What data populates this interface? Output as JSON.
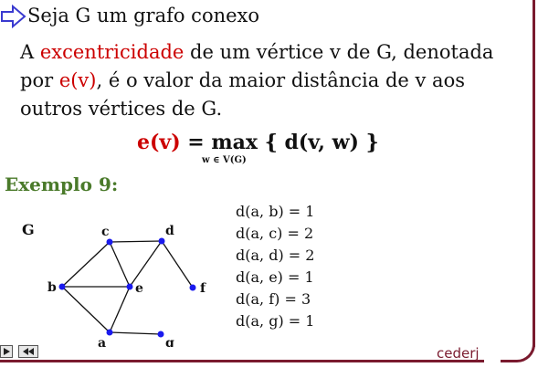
{
  "intro_line": "Seja G um grafo conexo",
  "definition": {
    "before": "A ",
    "term": "excentricidade",
    "middle": " de um vértice v de G, denotada por ",
    "symbol": "e(v)",
    "after": ", é o valor da maior distância de v aos outros vértices de G."
  },
  "formula": {
    "lhs": "e(v)",
    "equals": " = ",
    "op": "max",
    "rhs": " { d(v, w) }",
    "subscript": "w ∈ V(G)"
  },
  "example_title": "Exemplo 9:",
  "graph": {
    "name": "G",
    "vertices": [
      "a",
      "b",
      "c",
      "d",
      "e",
      "f",
      "g"
    ],
    "node_color": "#1a1aee"
  },
  "distances": [
    "d(a, b) = 1",
    "d(a, c) = 2",
    "d(a, d) = 2",
    "d(a, e) = 1",
    "d(a, f) = 3",
    "d(a, g) = 1"
  ],
  "brand": "cederj",
  "colors": {
    "accent": "#7a1a2e",
    "highlight": "#cc0000",
    "heading": "#4a7a2a"
  },
  "icons": [
    "arrow-bullet-icon",
    "play-icon",
    "rewind-icon"
  ]
}
